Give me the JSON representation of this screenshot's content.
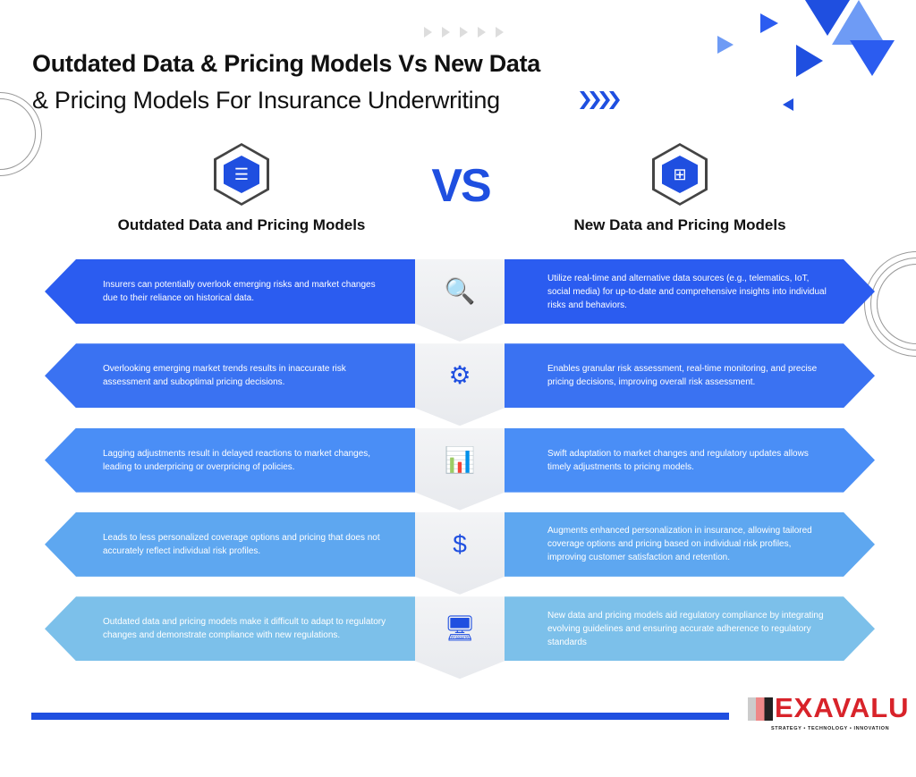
{
  "title": {
    "line1": "Outdated Data & Pricing Models Vs New Data",
    "line2": "& Pricing Models For Insurance Underwriting"
  },
  "vs": "VS",
  "left_heading": "Outdated Data and Pricing Models",
  "right_heading": "New Data and Pricing Models",
  "rows": [
    {
      "left": "Insurers can potentially overlook emerging risks and market changes due to their reliance on historical data.",
      "icon": "analytics-magnifier-icon",
      "right": "Utilize real-time and alternative data sources (e.g., telematics, IoT, social media) for up-to-date and comprehensive insights into individual risks and behaviors.",
      "color": "#2b5cf0"
    },
    {
      "left": "Overlooking emerging market trends results in inaccurate risk assessment and suboptimal pricing decisions.",
      "icon": "server-gear-search-icon",
      "right": "Enables granular risk assessment, real-time monitoring, and precise pricing decisions, improving overall risk assessment.",
      "color": "#3a72f2"
    },
    {
      "left": "Lagging adjustments result in delayed reactions to market changes, leading to underpricing or overpricing of policies.",
      "icon": "bar-chart-trend-icon",
      "right": "Swift adaptation to market changes and regulatory updates allows timely adjustments to pricing models.",
      "color": "#4a8ef6"
    },
    {
      "left": "Leads to less personalized coverage options and pricing that does not accurately reflect individual risk profiles.",
      "icon": "thumbs-up-dollar-icon",
      "right": "Augments enhanced personalization in insurance, allowing tailored coverage options and pricing based on individual risk profiles, improving customer satisfaction and retention.",
      "color": "#5ea7f0"
    },
    {
      "left": "Outdated data and pricing models make it difficult to adapt to regulatory changes and demonstrate compliance with new regulations.",
      "icon": "compliance-monitor-icon",
      "right": "New data and pricing models aid regulatory compliance by integrating evolving guidelines and ensuring accurate adherence to regulatory standards",
      "color": "#7cc0ea"
    }
  ],
  "logo": {
    "name": "EXAVALU",
    "tagline": "STRATEGY • TECHNOLOGY • INNOVATION"
  },
  "accent": "#1f4fe0"
}
